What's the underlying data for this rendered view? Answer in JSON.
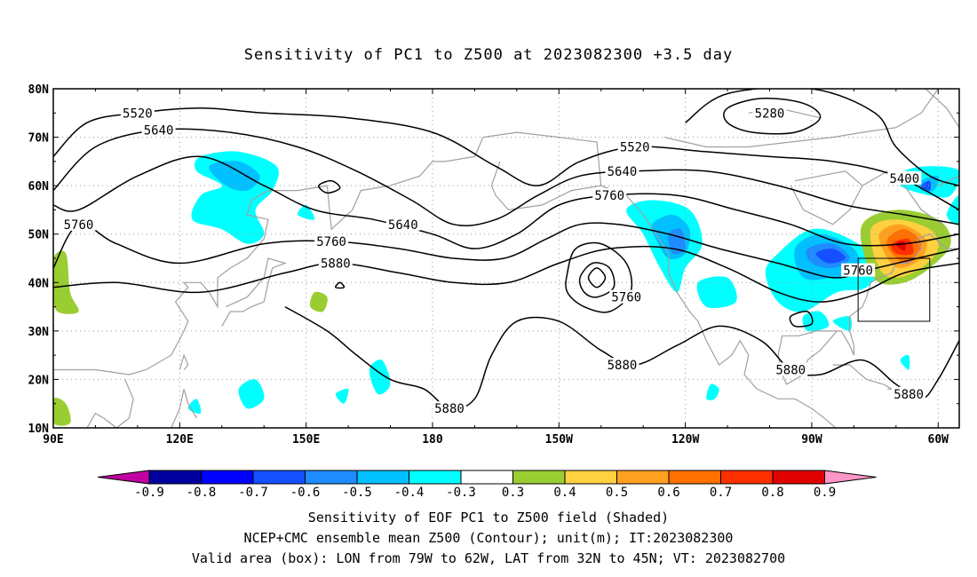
{
  "title": "Sensitivity of PC1 to Z500 at 2023082300 +3.5 day",
  "map": {
    "lon_range_deg_east": [
      90,
      305
    ],
    "lat_range_deg": [
      10,
      80
    ],
    "grid": "dotted",
    "lat_labels": [
      "80N",
      "70N",
      "60N",
      "50N",
      "40N",
      "30N",
      "20N",
      "10N"
    ],
    "lon_labels": [
      "90E",
      "120E",
      "150E",
      "180",
      "150W",
      "120W",
      "90W",
      "60W"
    ],
    "contour_color": "#000000",
    "coastline_color": "#a0a0a0",
    "contour_labels": [
      {
        "text": "5520",
        "lon": 110,
        "lat": 75
      },
      {
        "text": "5640",
        "lon": 115,
        "lat": 71.5
      },
      {
        "text": "5760",
        "lon": 96,
        "lat": 52
      },
      {
        "text": "5640",
        "lon": 173,
        "lat": 52
      },
      {
        "text": "5760",
        "lon": 156,
        "lat": 48.5
      },
      {
        "text": "5880",
        "lon": 157,
        "lat": 44
      },
      {
        "text": "5520",
        "lon": 228,
        "lat": 68
      },
      {
        "text": "5640",
        "lon": 225,
        "lat": 63
      },
      {
        "text": "5760",
        "lon": 222,
        "lat": 58
      },
      {
        "text": "5760",
        "lon": 226,
        "lat": 37
      },
      {
        "text": "5280",
        "lon": 260,
        "lat": 75
      },
      {
        "text": "5400",
        "lon": 292,
        "lat": 61.5
      },
      {
        "text": "5760",
        "lon": 281,
        "lat": 42.5
      },
      {
        "text": "5880",
        "lon": 225,
        "lat": 23
      },
      {
        "text": "5880",
        "lon": 265,
        "lat": 22
      },
      {
        "text": "5880",
        "lon": 184,
        "lat": 14
      },
      {
        "text": "5880",
        "lon": 293,
        "lat": 17
      }
    ],
    "valid_box": {
      "lon_w": 79,
      "lon_e": 62,
      "lat_s": 32,
      "lat_n": 45
    }
  },
  "colorbar": {
    "levels": [
      "-0.9",
      "-0.8",
      "-0.7",
      "-0.6",
      "-0.5",
      "-0.4",
      "-0.3",
      "0.3",
      "0.4",
      "0.5",
      "0.6",
      "0.7",
      "0.8",
      "0.9"
    ],
    "colors": [
      "#0000a0",
      "#0000ff",
      "#1450ff",
      "#1e8cff",
      "#00c0ff",
      "#00ffff",
      "#ffffff",
      "#9acd32",
      "#ffd040",
      "#ffa020",
      "#ff7000",
      "#ff3000",
      "#e00000"
    ],
    "low_extend_color": "#c000a0",
    "high_extend_color": "#ff96c8"
  },
  "chart_data": {
    "type": "heatmap",
    "title": "Sensitivity of PC1 to Z500 at 2023082300 +3.5 day",
    "xlabel": "",
    "ylabel": "",
    "x_ticks": [
      "90E",
      "120E",
      "150E",
      "180",
      "150W",
      "120W",
      "90W",
      "60W"
    ],
    "y_ticks": [
      "80N",
      "70N",
      "60N",
      "50N",
      "40N",
      "30N",
      "20N",
      "10N"
    ],
    "contour_levels_m": [
      5280,
      5400,
      5520,
      5640,
      5760,
      5880
    ],
    "shading_levels": [
      -0.9,
      -0.8,
      -0.7,
      -0.6,
      -0.5,
      -0.4,
      -0.3,
      0.3,
      0.4,
      0.5,
      0.6,
      0.7,
      0.8,
      0.9
    ],
    "sensitivity_features": [
      {
        "lon": 133,
        "lat": 62,
        "value": -0.45
      },
      {
        "lon": 140,
        "lat": 55,
        "value": -0.35
      },
      {
        "lon": 238,
        "lat": 48,
        "value": -0.55
      },
      {
        "lon": 245,
        "lat": 41,
        "value": -0.35
      },
      {
        "lon": 272,
        "lat": 45,
        "value": -0.9
      },
      {
        "lon": 263,
        "lat": 40,
        "value": -0.45
      },
      {
        "lon": 292,
        "lat": 48,
        "value": 0.85
      },
      {
        "lon": 299,
        "lat": 62,
        "value": -0.6
      },
      {
        "lon": 305,
        "lat": 58,
        "value": -0.4
      },
      {
        "lon": 93,
        "lat": 40,
        "value": 0.35
      },
      {
        "lon": 144,
        "lat": 39,
        "value": 0.35
      }
    ]
  },
  "footer": {
    "line1": "Sensitivity of EOF PC1 to Z500 field (Shaded)",
    "line2": "NCEP+CMC ensemble mean Z500 (Contour); unit(m); IT:2023082300",
    "line3": "Valid area (box): LON from 79W to 62W, LAT from 32N to 45N; VT: 2023082700"
  }
}
